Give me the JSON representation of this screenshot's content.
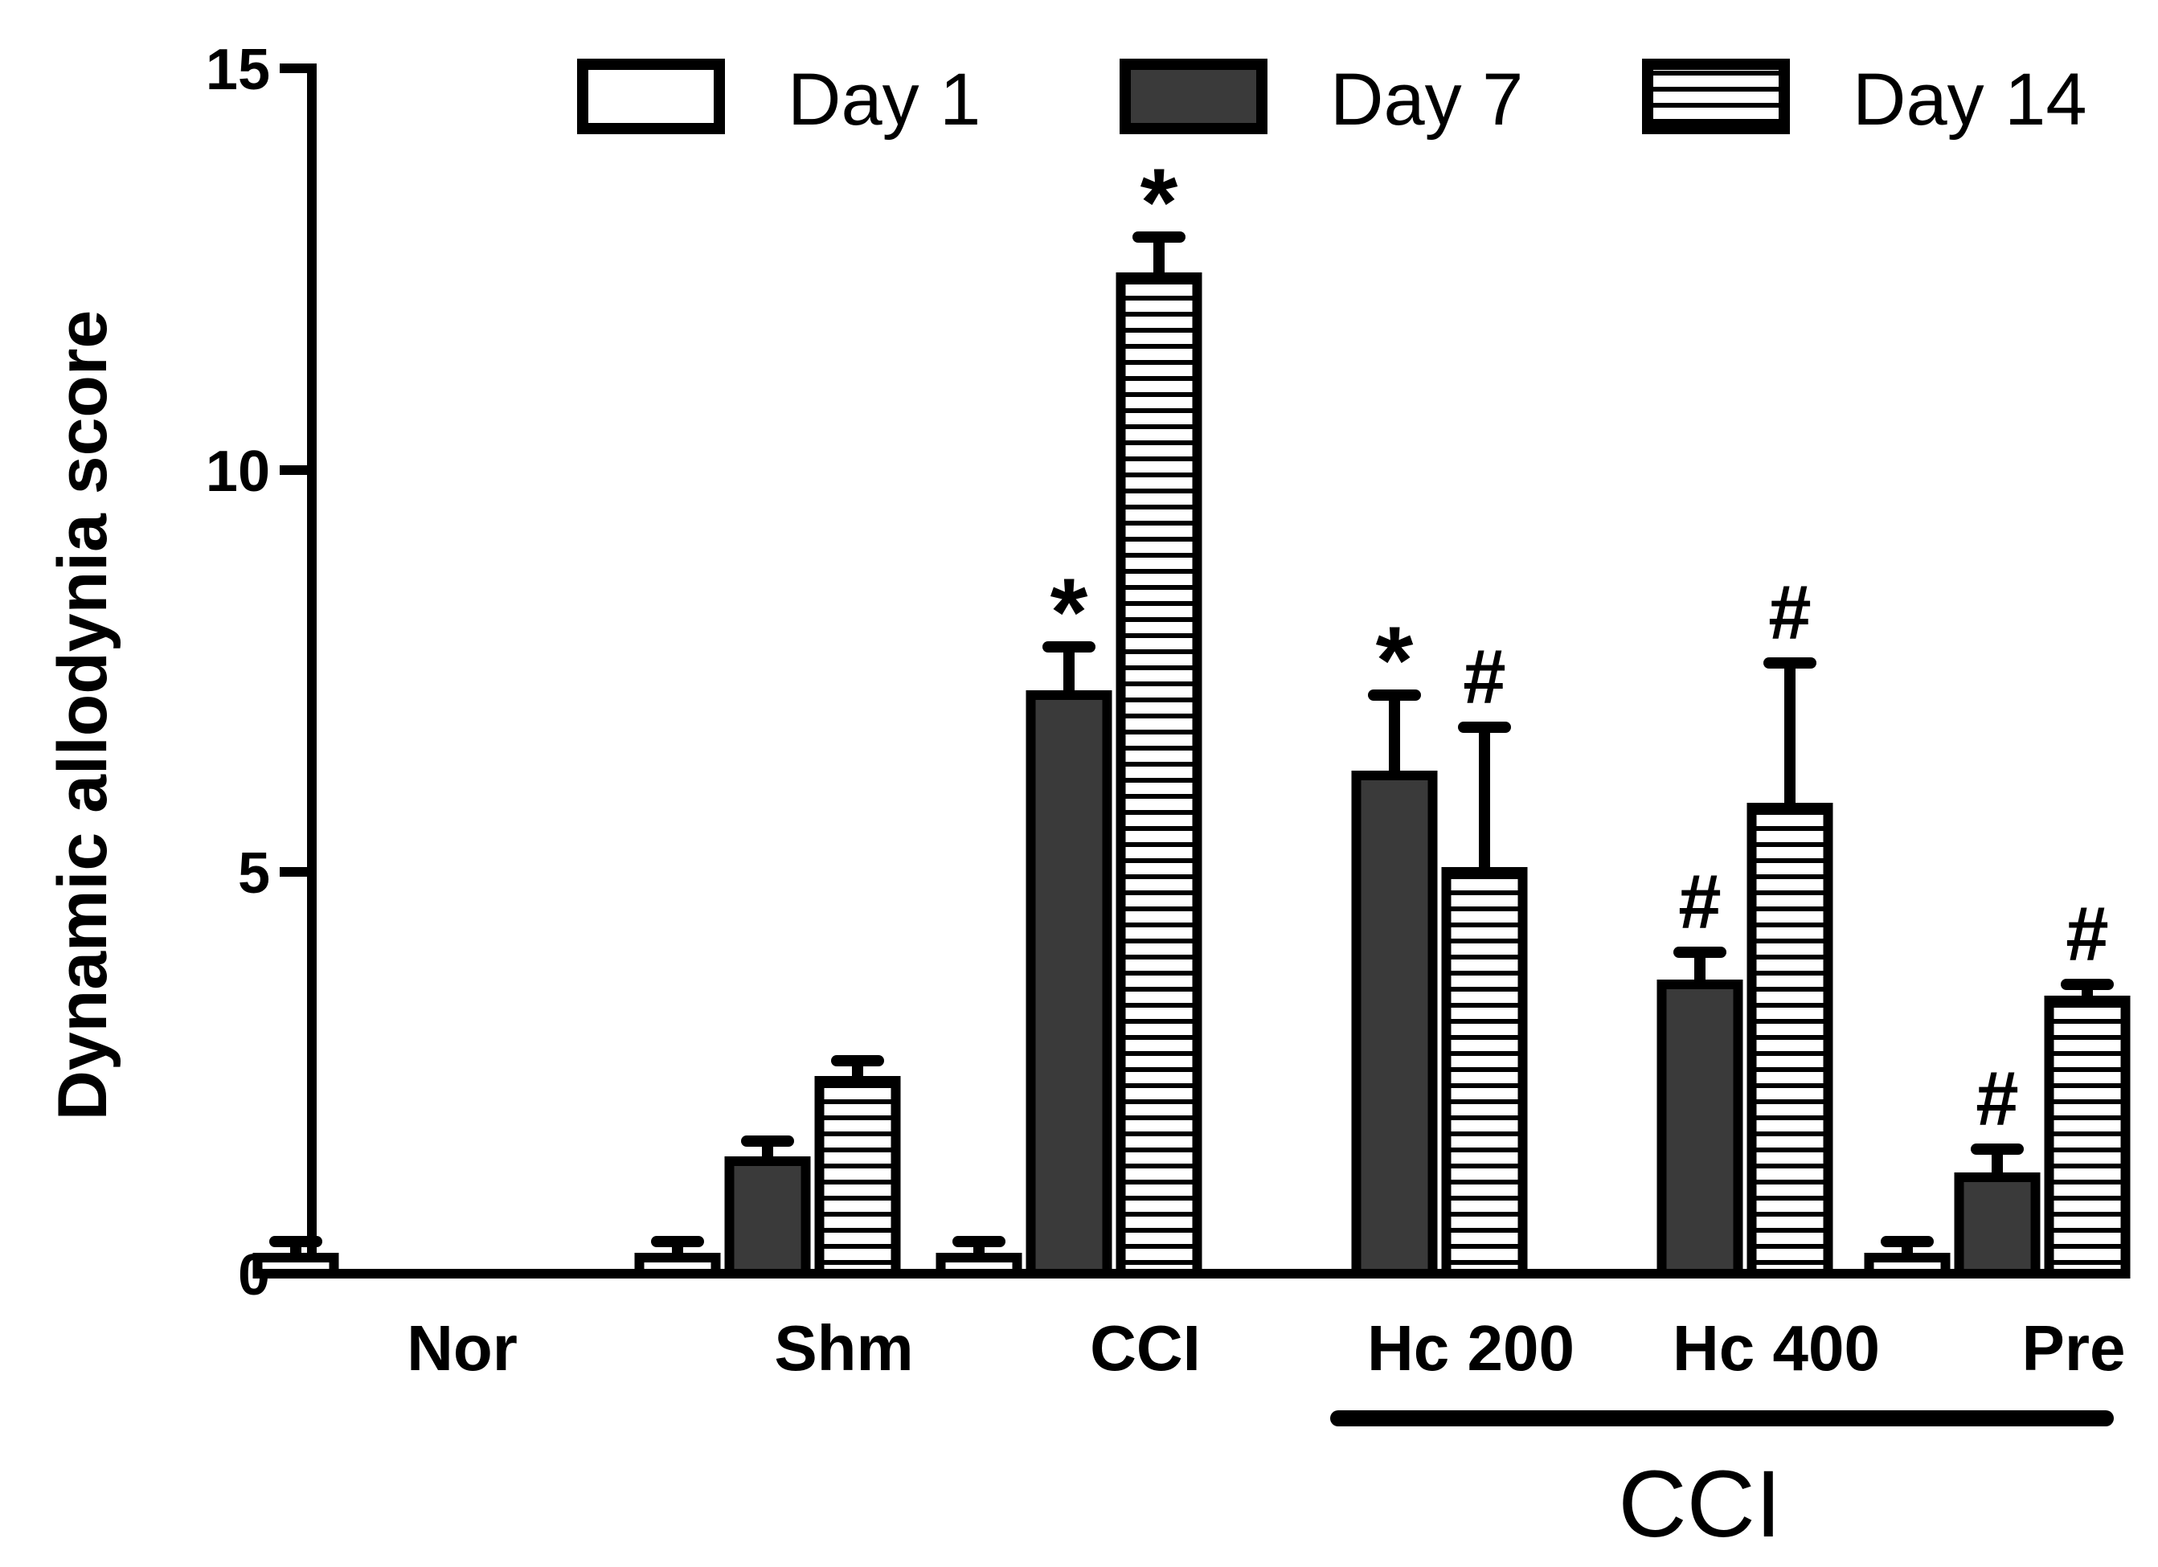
{
  "chart_data": {
    "type": "bar",
    "title": "",
    "xlabel": "",
    "ylabel": "Dynamic allodynia score",
    "ylim": [
      0,
      15
    ],
    "yticks": [
      "0",
      "5",
      "10",
      "15"
    ],
    "ytick_values": [
      0,
      5,
      10,
      15
    ],
    "categories": [
      "Nor",
      "Shm",
      "CCI",
      "Hc 200",
      "Hc 400",
      "Pre"
    ],
    "group_label": "CCI",
    "group_span": [
      "Hc 200",
      "Pre"
    ],
    "legend_position": "top",
    "series": [
      {
        "name": "Day 1",
        "fill": "white",
        "values": [
          0.2,
          0.2,
          0.2,
          null,
          null,
          0.2
        ],
        "errors": [
          0.2,
          0.2,
          0.2,
          null,
          null,
          0.2
        ],
        "sig": [
          "",
          "",
          "",
          "",
          "",
          ""
        ]
      },
      {
        "name": "Day 7",
        "fill": "dark",
        "values": [
          null,
          1.4,
          7.2,
          6.2,
          3.6,
          1.2
        ],
        "errors": [
          null,
          0.25,
          0.6,
          1.0,
          0.4,
          0.35
        ],
        "sig": [
          "",
          "",
          "*",
          "*",
          "#",
          "#"
        ]
      },
      {
        "name": "Day 14",
        "fill": "striped",
        "values": [
          null,
          2.4,
          12.4,
          5.0,
          5.8,
          3.4
        ],
        "errors": [
          null,
          0.25,
          0.5,
          1.8,
          1.8,
          0.2
        ],
        "sig": [
          "",
          "",
          "*",
          "#",
          "#",
          "#"
        ]
      }
    ]
  },
  "colors": {
    "dark_fill": "#3a3a3a",
    "stroke": "#000000",
    "stripe": "#000000",
    "background": "#ffffff"
  }
}
